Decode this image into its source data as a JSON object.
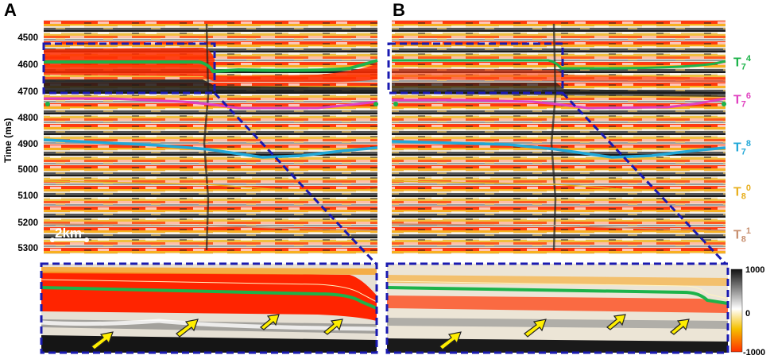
{
  "panels": [
    {
      "letter": "A"
    },
    {
      "letter": "B"
    }
  ],
  "y_axis": {
    "label": "Time (ms)",
    "ticks": [
      "4500",
      "4600",
      "4700",
      "4800",
      "4900",
      "5000",
      "5100",
      "5200",
      "5300"
    ]
  },
  "scale_bar": {
    "label": "2km"
  },
  "horizons": [
    {
      "base": "T",
      "sub": "7",
      "sup": "4",
      "color": "#1db34a"
    },
    {
      "base": "T",
      "sub": "7",
      "sup": "6",
      "color": "#e040c0"
    },
    {
      "base": "T",
      "sub": "7",
      "sup": "8",
      "color": "#22a8d8"
    },
    {
      "base": "T",
      "sub": "8",
      "sup": "0",
      "color": "#e8b020"
    },
    {
      "base": "T",
      "sub": "8",
      "sup": "1",
      "color": "#c89070"
    }
  ],
  "colorbar": {
    "max_label": "1000",
    "mid_label": "0",
    "min_label": "-1000",
    "colors": [
      "#111111",
      "#ffffff",
      "#f5c000",
      "#ff3000"
    ]
  },
  "colors": {
    "frame": "#1a1ab0",
    "arrow": "#ffee00"
  }
}
